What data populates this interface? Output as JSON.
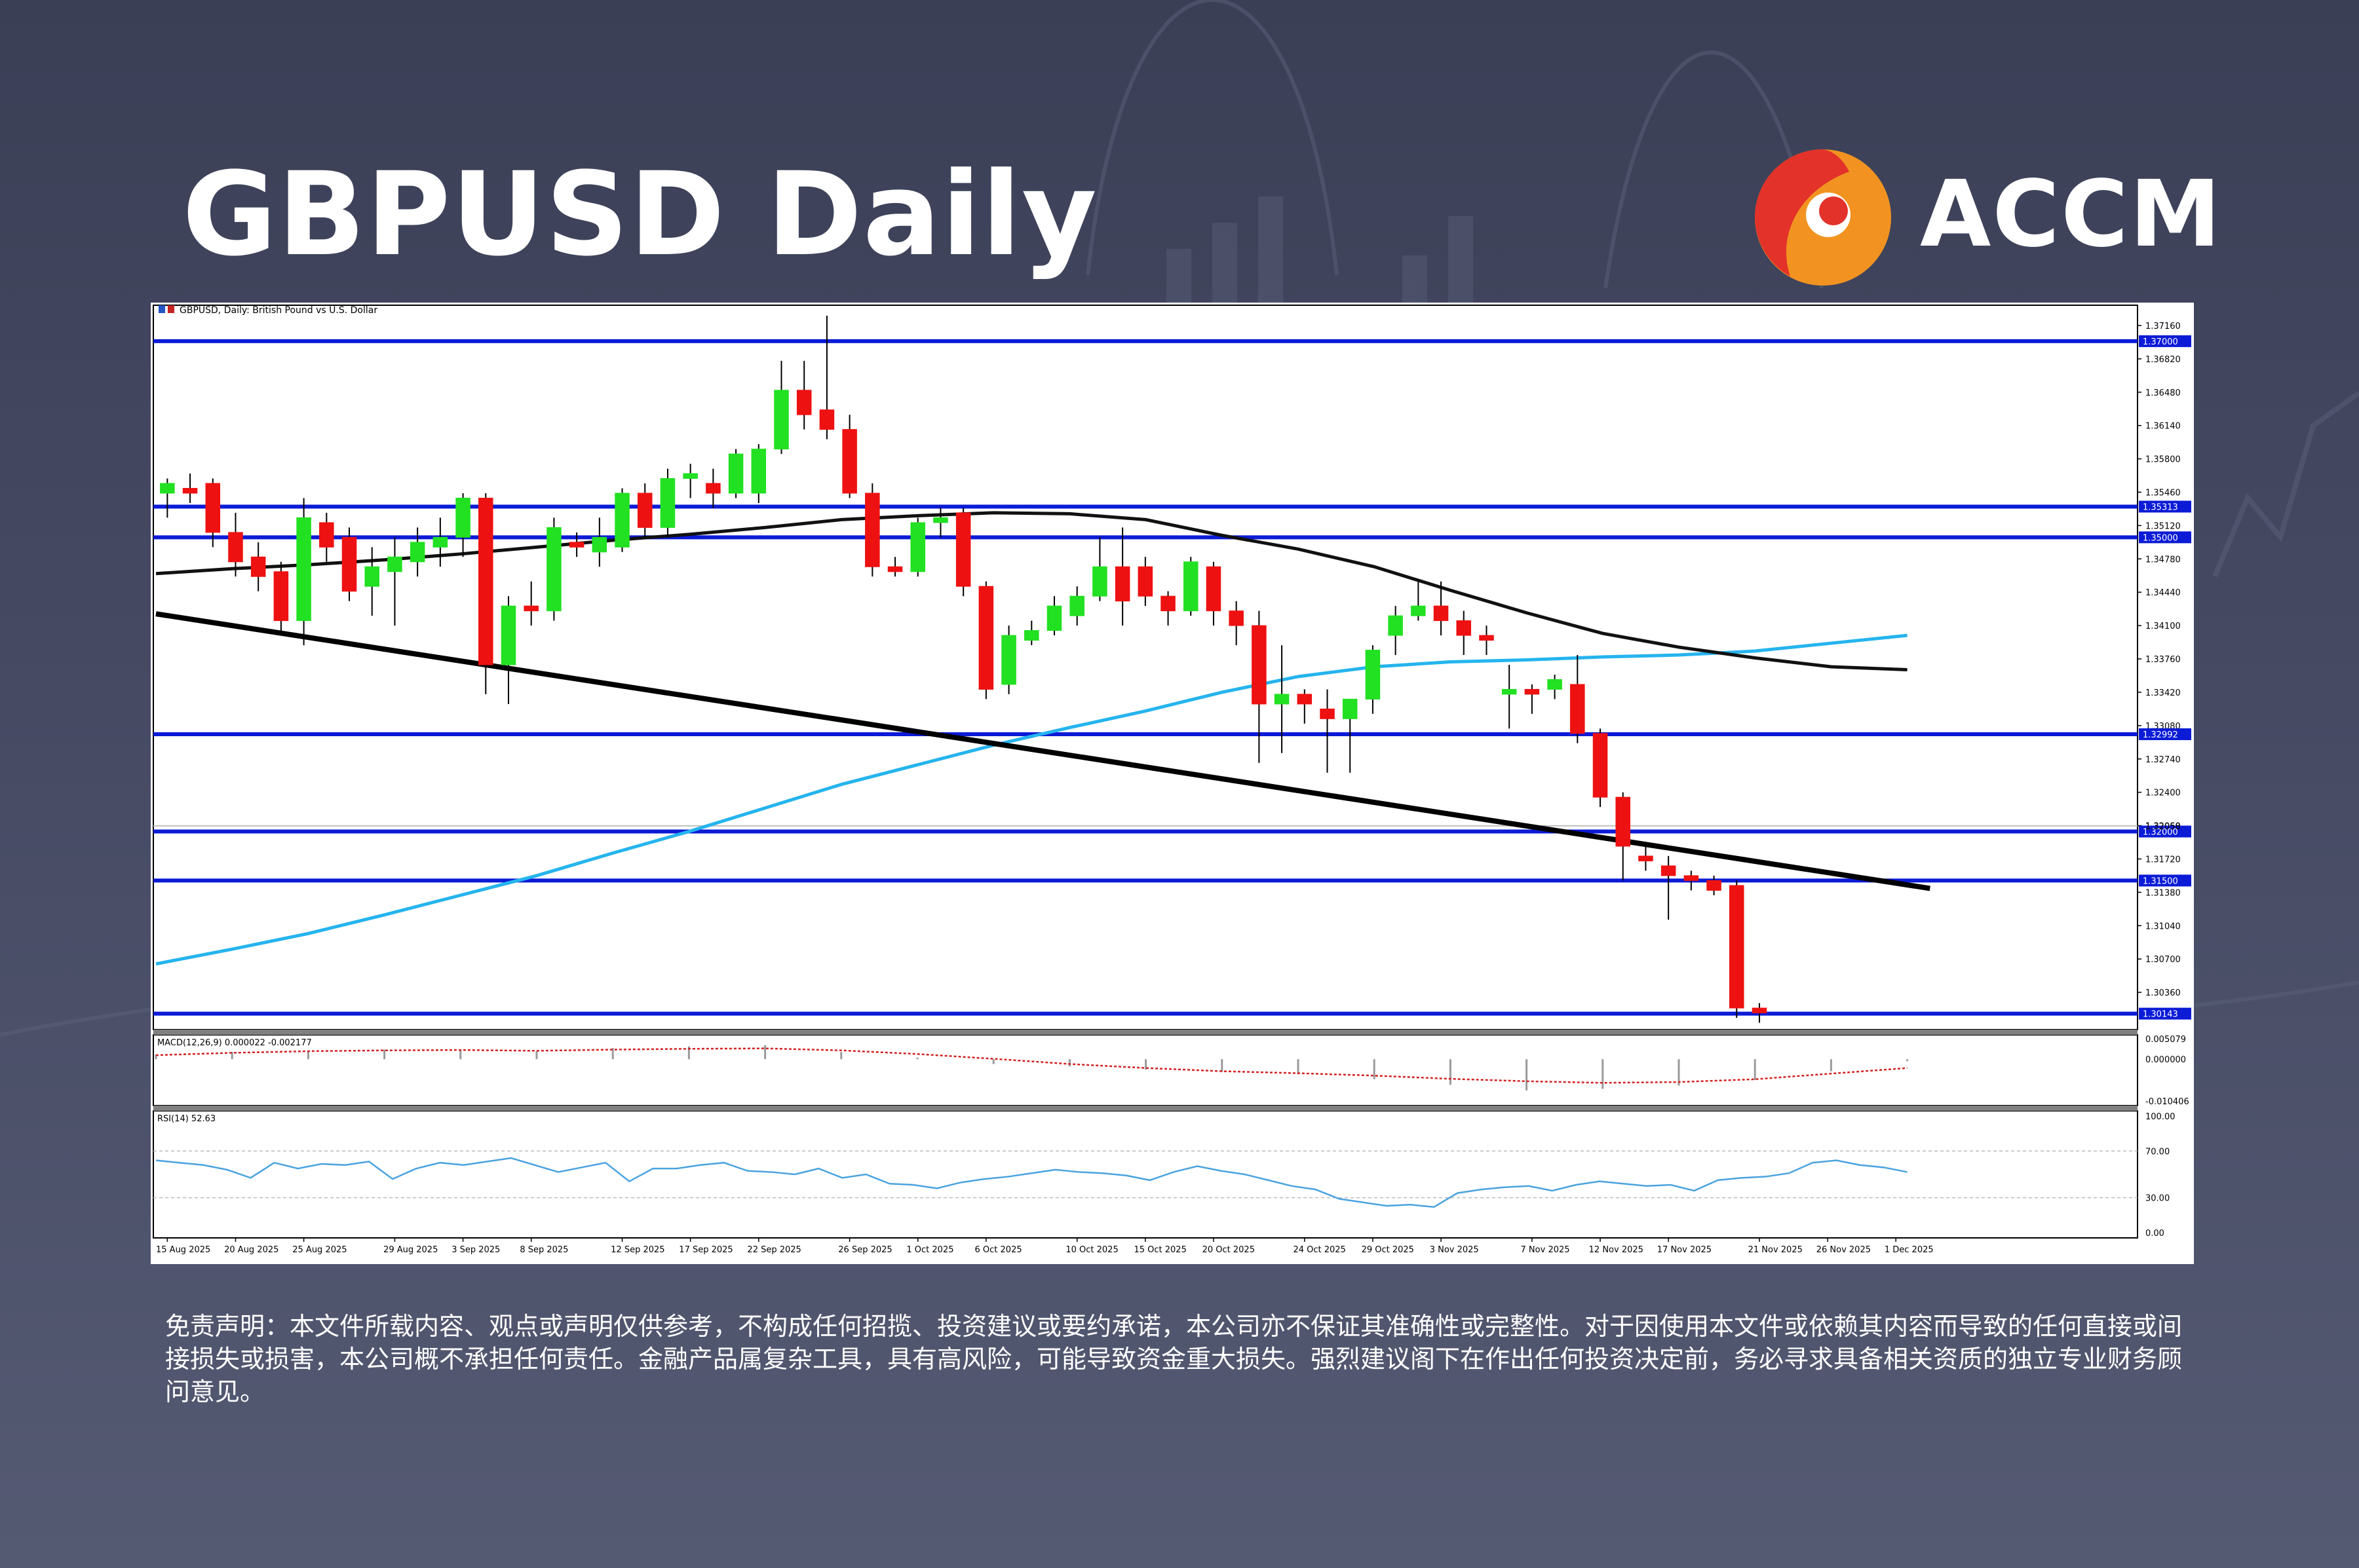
{
  "page": {
    "title": "GBPUSD Daily",
    "brand": "ACCM",
    "disclaimer": "免责声明：本文件所载内容、观点或声明仅供参考，不构成任何招揽、投资建议或要约承诺，本公司亦不保证其准确性或完整性。对于因使用本文件或依赖其内容而导致的任何直接或间接损失或损害，本公司概不承担任何责任。金融产品属复杂工具，具有高风险，可能导致资金重大损失。强烈建议阁下在作出任何投资决定前，务必寻求具备相关资质的独立专业财务顾问意见。"
  },
  "colors": {
    "background": "#404459",
    "bullish": "#22e022",
    "bearish": "#ee1111",
    "support_resistance": "#0b1bd6",
    "ma_fast": "#111111",
    "ma_slow": "#25b4ee",
    "trendline": "#000000",
    "rsi_line": "#4aa3df",
    "macd_signal": "#d22222",
    "macd_hist": "#9a9a9a",
    "logo_orange": "#f29321",
    "logo_red": "#e2322a"
  },
  "chart_data": {
    "type": "candlestick",
    "symbol_label": "GBPUSD, Daily: British Pound vs U.S. Dollar",
    "ylim": [
      1.2998,
      1.3734
    ],
    "y_ticks": [
      "1.37160",
      "1.36820",
      "1.36480",
      "1.36140",
      "1.35800",
      "1.35460",
      "1.35120",
      "1.34780",
      "1.34440",
      "1.34100",
      "1.33760",
      "1.33420",
      "1.33080",
      "1.32740",
      "1.32400",
      "1.32060",
      "1.31720",
      "1.31380",
      "1.31040",
      "1.30700",
      "1.30360"
    ],
    "x_ticks": [
      {
        "label": "15 Aug 2025",
        "i": 0
      },
      {
        "label": "20 Aug 2025",
        "i": 3
      },
      {
        "label": "25 Aug 2025",
        "i": 6
      },
      {
        "label": "29 Aug 2025",
        "i": 10
      },
      {
        "label": "3 Sep 2025",
        "i": 13
      },
      {
        "label": "8 Sep 2025",
        "i": 16
      },
      {
        "label": "12 Sep 2025",
        "i": 20
      },
      {
        "label": "17 Sep 2025",
        "i": 23
      },
      {
        "label": "22 Sep 2025",
        "i": 26
      },
      {
        "label": "26 Sep 2025",
        "i": 30
      },
      {
        "label": "1 Oct 2025",
        "i": 33
      },
      {
        "label": "6 Oct 2025",
        "i": 36
      },
      {
        "label": "10 Oct 2025",
        "i": 40
      },
      {
        "label": "15 Oct 2025",
        "i": 43
      },
      {
        "label": "20 Oct 2025",
        "i": 46
      },
      {
        "label": "24 Oct 2025",
        "i": 50
      },
      {
        "label": "29 Oct 2025",
        "i": 53
      },
      {
        "label": "3 Nov 2025",
        "i": 56
      },
      {
        "label": "7 Nov 2025",
        "i": 60
      },
      {
        "label": "12 Nov 2025",
        "i": 63
      },
      {
        "label": "17 Nov 2025",
        "i": 66
      },
      {
        "label": "21 Nov 2025",
        "i": 70
      },
      {
        "label": "26 Nov 2025",
        "i": 73
      },
      {
        "label": "1 Dec 2025",
        "i": 76
      }
    ],
    "candles": [
      {
        "o": 1.3545,
        "h": 1.356,
        "l": 1.352,
        "c": 1.3555
      },
      {
        "o": 1.355,
        "h": 1.3565,
        "l": 1.3535,
        "c": 1.3545
      },
      {
        "o": 1.3555,
        "h": 1.356,
        "l": 1.349,
        "c": 1.3505
      },
      {
        "o": 1.3505,
        "h": 1.3525,
        "l": 1.346,
        "c": 1.3475
      },
      {
        "o": 1.348,
        "h": 1.3495,
        "l": 1.3445,
        "c": 1.346
      },
      {
        "o": 1.3465,
        "h": 1.3475,
        "l": 1.34,
        "c": 1.3415
      },
      {
        "o": 1.3415,
        "h": 1.354,
        "l": 1.339,
        "c": 1.352
      },
      {
        "o": 1.3515,
        "h": 1.3525,
        "l": 1.3475,
        "c": 1.349
      },
      {
        "o": 1.35,
        "h": 1.351,
        "l": 1.3435,
        "c": 1.3445
      },
      {
        "o": 1.345,
        "h": 1.349,
        "l": 1.342,
        "c": 1.347
      },
      {
        "o": 1.3465,
        "h": 1.35,
        "l": 1.341,
        "c": 1.348
      },
      {
        "o": 1.3475,
        "h": 1.351,
        "l": 1.346,
        "c": 1.3495
      },
      {
        "o": 1.349,
        "h": 1.352,
        "l": 1.347,
        "c": 1.35
      },
      {
        "o": 1.35,
        "h": 1.3545,
        "l": 1.348,
        "c": 1.354
      },
      {
        "o": 1.354,
        "h": 1.3545,
        "l": 1.334,
        "c": 1.337
      },
      {
        "o": 1.337,
        "h": 1.344,
        "l": 1.333,
        "c": 1.343
      },
      {
        "o": 1.343,
        "h": 1.3455,
        "l": 1.341,
        "c": 1.3425
      },
      {
        "o": 1.3425,
        "h": 1.352,
        "l": 1.3415,
        "c": 1.351
      },
      {
        "o": 1.3495,
        "h": 1.3505,
        "l": 1.348,
        "c": 1.349
      },
      {
        "o": 1.3485,
        "h": 1.352,
        "l": 1.347,
        "c": 1.35
      },
      {
        "o": 1.349,
        "h": 1.355,
        "l": 1.3485,
        "c": 1.3545
      },
      {
        "o": 1.3545,
        "h": 1.3555,
        "l": 1.35,
        "c": 1.351
      },
      {
        "o": 1.351,
        "h": 1.357,
        "l": 1.35,
        "c": 1.356
      },
      {
        "o": 1.356,
        "h": 1.3575,
        "l": 1.354,
        "c": 1.3565
      },
      {
        "o": 1.3555,
        "h": 1.357,
        "l": 1.353,
        "c": 1.3545
      },
      {
        "o": 1.3545,
        "h": 1.359,
        "l": 1.354,
        "c": 1.3585
      },
      {
        "o": 1.3545,
        "h": 1.3595,
        "l": 1.3535,
        "c": 1.359
      },
      {
        "o": 1.359,
        "h": 1.368,
        "l": 1.3585,
        "c": 1.365
      },
      {
        "o": 1.365,
        "h": 1.368,
        "l": 1.361,
        "c": 1.3625
      },
      {
        "o": 1.363,
        "h": 1.3726,
        "l": 1.36,
        "c": 1.361
      },
      {
        "o": 1.361,
        "h": 1.3625,
        "l": 1.354,
        "c": 1.3545
      },
      {
        "o": 1.3545,
        "h": 1.3555,
        "l": 1.346,
        "c": 1.347
      },
      {
        "o": 1.347,
        "h": 1.348,
        "l": 1.346,
        "c": 1.3465
      },
      {
        "o": 1.3465,
        "h": 1.352,
        "l": 1.346,
        "c": 1.3515
      },
      {
        "o": 1.3515,
        "h": 1.353,
        "l": 1.35,
        "c": 1.352
      },
      {
        "o": 1.3525,
        "h": 1.353,
        "l": 1.344,
        "c": 1.345
      },
      {
        "o": 1.345,
        "h": 1.3455,
        "l": 1.3335,
        "c": 1.3345
      },
      {
        "o": 1.335,
        "h": 1.341,
        "l": 1.334,
        "c": 1.34
      },
      {
        "o": 1.3395,
        "h": 1.3415,
        "l": 1.339,
        "c": 1.3405
      },
      {
        "o": 1.3405,
        "h": 1.344,
        "l": 1.34,
        "c": 1.343
      },
      {
        "o": 1.342,
        "h": 1.345,
        "l": 1.341,
        "c": 1.344
      },
      {
        "o": 1.344,
        "h": 1.35,
        "l": 1.3435,
        "c": 1.347
      },
      {
        "o": 1.347,
        "h": 1.351,
        "l": 1.341,
        "c": 1.3435
      },
      {
        "o": 1.347,
        "h": 1.348,
        "l": 1.343,
        "c": 1.344
      },
      {
        "o": 1.344,
        "h": 1.3445,
        "l": 1.341,
        "c": 1.3425
      },
      {
        "o": 1.3425,
        "h": 1.348,
        "l": 1.342,
        "c": 1.3475
      },
      {
        "o": 1.347,
        "h": 1.3475,
        "l": 1.341,
        "c": 1.3425
      },
      {
        "o": 1.3425,
        "h": 1.3435,
        "l": 1.339,
        "c": 1.341
      },
      {
        "o": 1.341,
        "h": 1.3425,
        "l": 1.327,
        "c": 1.333
      },
      {
        "o": 1.333,
        "h": 1.339,
        "l": 1.328,
        "c": 1.334
      },
      {
        "o": 1.334,
        "h": 1.3345,
        "l": 1.331,
        "c": 1.333
      },
      {
        "o": 1.3325,
        "h": 1.3345,
        "l": 1.326,
        "c": 1.3315
      },
      {
        "o": 1.3315,
        "h": 1.333,
        "l": 1.326,
        "c": 1.3335
      },
      {
        "o": 1.3335,
        "h": 1.339,
        "l": 1.332,
        "c": 1.3385
      },
      {
        "o": 1.34,
        "h": 1.343,
        "l": 1.338,
        "c": 1.342
      },
      {
        "o": 1.342,
        "h": 1.3455,
        "l": 1.3415,
        "c": 1.343
      },
      {
        "o": 1.343,
        "h": 1.3455,
        "l": 1.34,
        "c": 1.3415
      },
      {
        "o": 1.3415,
        "h": 1.3425,
        "l": 1.338,
        "c": 1.34
      },
      {
        "o": 1.34,
        "h": 1.341,
        "l": 1.338,
        "c": 1.3395
      },
      {
        "o": 1.334,
        "h": 1.337,
        "l": 1.3305,
        "c": 1.3345
      },
      {
        "o": 1.3345,
        "h": 1.335,
        "l": 1.332,
        "c": 1.334
      },
      {
        "o": 1.3345,
        "h": 1.336,
        "l": 1.3335,
        "c": 1.3355
      },
      {
        "o": 1.335,
        "h": 1.338,
        "l": 1.329,
        "c": 1.33
      },
      {
        "o": 1.33,
        "h": 1.3305,
        "l": 1.3225,
        "c": 1.3235
      },
      {
        "o": 1.3235,
        "h": 1.324,
        "l": 1.315,
        "c": 1.3185
      },
      {
        "o": 1.3175,
        "h": 1.3185,
        "l": 1.316,
        "c": 1.317
      },
      {
        "o": 1.3165,
        "h": 1.3175,
        "l": 1.311,
        "c": 1.3155
      },
      {
        "o": 1.3155,
        "h": 1.316,
        "l": 1.314,
        "c": 1.315
      },
      {
        "o": 1.315,
        "h": 1.3155,
        "l": 1.3135,
        "c": 1.314
      },
      {
        "o": 1.3145,
        "h": 1.315,
        "l": 1.301,
        "c": 1.302
      },
      {
        "o": 1.302,
        "h": 1.3025,
        "l": 1.3005,
        "c": 1.3015
      }
    ],
    "ma_fast": [
      1.3463,
      1.3468,
      1.3472,
      1.3477,
      1.3483,
      1.349,
      1.3497,
      1.3503,
      1.351,
      1.3518,
      1.3522,
      1.3525,
      1.3524,
      1.3518,
      1.3502,
      1.3488,
      1.347,
      1.3446,
      1.3423,
      1.3402,
      1.3388,
      1.3377,
      1.3368,
      1.3365
    ],
    "ma_slow": [
      1.3065,
      1.308,
      1.3096,
      1.3115,
      1.3135,
      1.3155,
      1.3178,
      1.32,
      1.3224,
      1.3248,
      1.3268,
      1.3288,
      1.3306,
      1.3323,
      1.3342,
      1.3358,
      1.3368,
      1.3373,
      1.3375,
      1.3378,
      1.338,
      1.3384,
      1.3392,
      1.34
    ],
    "trendline": [
      [
        0,
        1.3422
      ],
      [
        78,
        1.3142
      ]
    ],
    "levels": [
      {
        "price": 1.37,
        "label": "1.37000"
      },
      {
        "price": 1.35313,
        "label": "1.35313"
      },
      {
        "price": 1.35,
        "label": "1.35000"
      },
      {
        "price": 1.32992,
        "label": "1.32992"
      },
      {
        "price": 1.32,
        "label": "1.32000"
      },
      {
        "price": 1.315,
        "label": "1.31500"
      },
      {
        "price": 1.30143,
        "label": "1.30143"
      }
    ],
    "bid_label": "1.32058",
    "macd": {
      "label": "MACD(12,26,9) 0.000022 -0.002177",
      "ticks": [
        "0.005079",
        "0.000000",
        "-0.010406"
      ],
      "ylim": [
        -0.0106,
        0.0051
      ],
      "signal": [
        0.001,
        0.0016,
        0.002,
        0.0022,
        0.0023,
        0.0021,
        0.0024,
        0.0026,
        0.0027,
        0.0022,
        0.0013,
        0.0001,
        -0.0012,
        -0.0022,
        -0.003,
        -0.0035,
        -0.0041,
        -0.0049,
        -0.0055,
        -0.0059,
        -0.0057,
        -0.005,
        -0.0036,
        -0.0022
      ],
      "hist": [
        0.0012,
        0.0018,
        0.0022,
        0.0024,
        0.0025,
        0.002,
        0.0028,
        0.0032,
        0.0035,
        0.0018,
        0.0004,
        -0.0012,
        -0.0018,
        -0.0026,
        -0.0032,
        -0.0038,
        -0.005,
        -0.0064,
        -0.0078,
        -0.0074,
        -0.0066,
        -0.0052,
        -0.003,
        -0.0005
      ]
    },
    "rsi": {
      "label": "RSI(14) 52.63",
      "ticks": [
        "100.00",
        "70.00",
        "30.00",
        "0.00"
      ],
      "levels": [
        70,
        30
      ],
      "values": [
        62,
        60,
        58,
        54,
        47,
        60,
        55,
        59,
        58,
        61,
        46,
        55,
        60,
        58,
        61,
        64,
        58,
        52,
        56,
        60,
        44,
        55,
        55,
        58,
        60,
        53,
        52,
        50,
        55,
        47,
        50,
        42,
        41,
        38,
        43,
        46,
        48,
        51,
        54,
        52,
        51,
        49,
        45,
        52,
        57,
        53,
        50,
        45,
        40,
        37,
        29,
        26,
        23,
        24,
        22,
        34,
        37,
        39,
        40,
        36,
        41,
        44,
        42,
        40,
        41,
        36,
        45,
        47,
        48,
        51,
        60,
        62,
        58,
        56,
        52
      ]
    },
    "x_count": 79
  }
}
